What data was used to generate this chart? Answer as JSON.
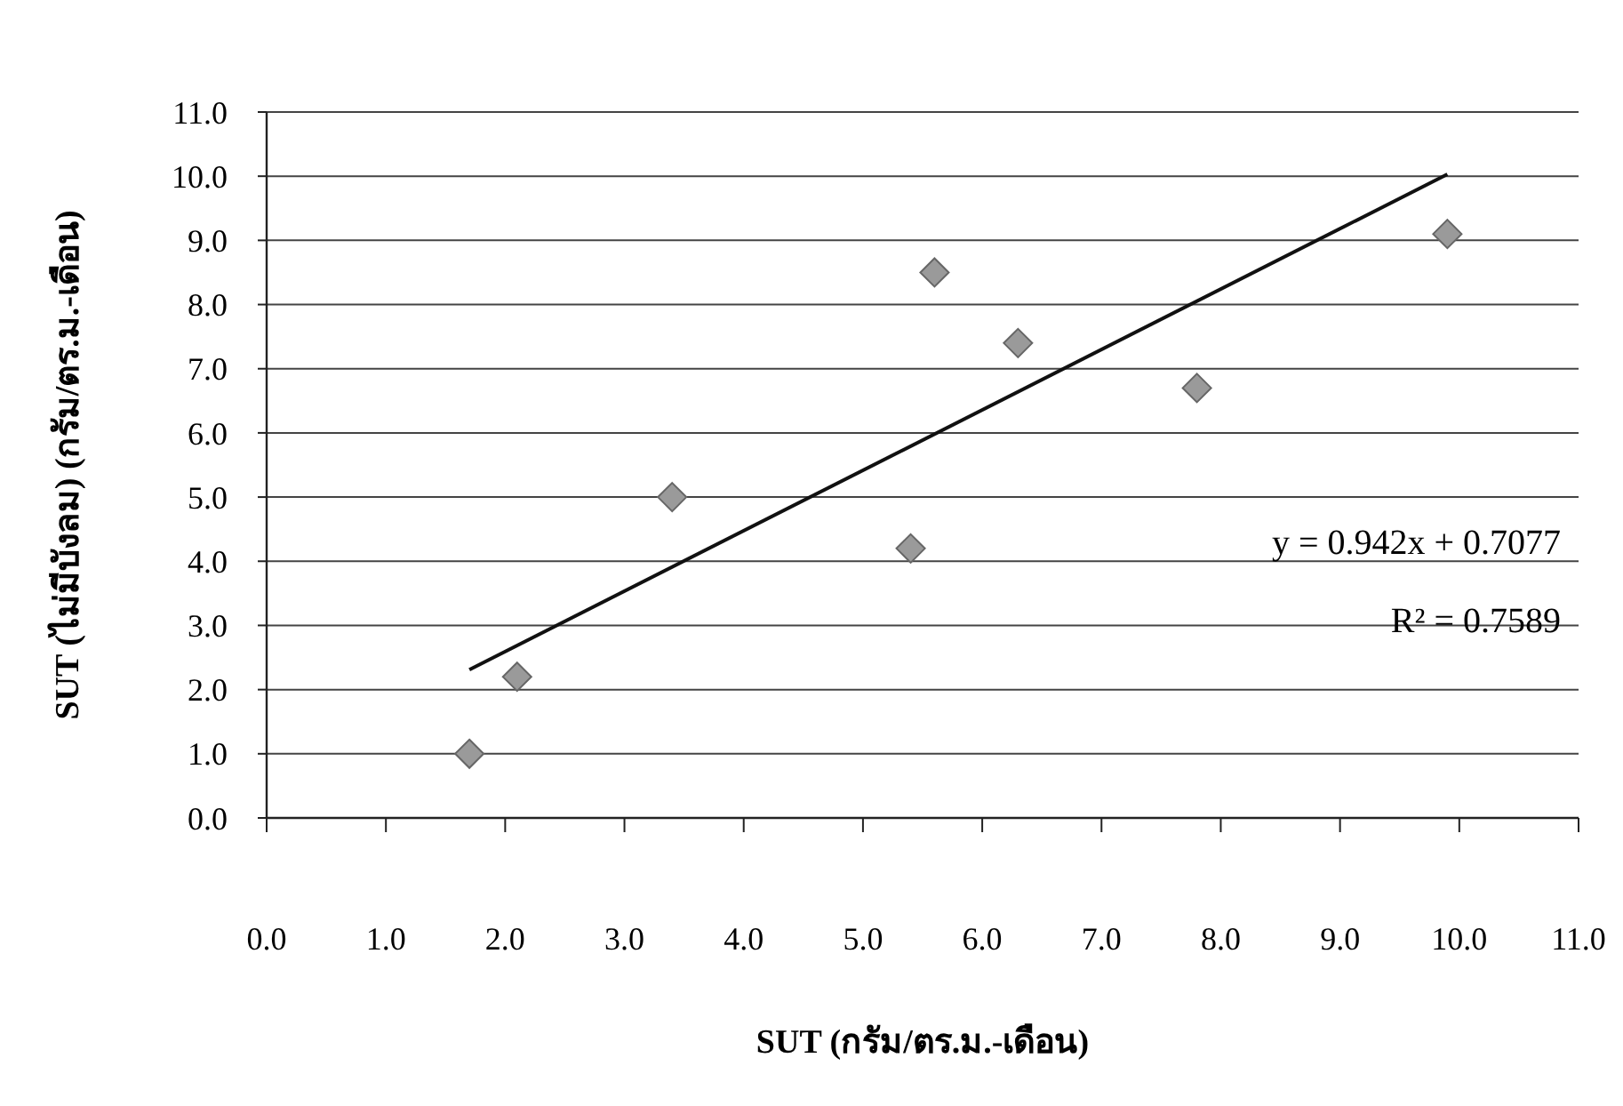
{
  "chart_data": {
    "type": "scatter",
    "xlabel": "SUT (กรัม/ตร.ม.-เดือน)",
    "ylabel": "SUT (ไม่มีบังลม) (กรัม/ตร.ม.-เดือน)",
    "xlim": [
      0,
      11
    ],
    "xticks": [
      {
        "value": 0,
        "label": "0.0"
      },
      {
        "value": 1,
        "label": "1.0"
      },
      {
        "value": 2,
        "label": "2.0"
      },
      {
        "value": 3,
        "label": "3.0"
      },
      {
        "value": 4,
        "label": "4.0"
      },
      {
        "value": 5,
        "label": "5.0"
      },
      {
        "value": 6,
        "label": "6.0"
      },
      {
        "value": 7,
        "label": "7.0"
      },
      {
        "value": 8,
        "label": "8.0"
      },
      {
        "value": 9,
        "label": "9.0"
      },
      {
        "value": 10,
        "label": "10.0"
      },
      {
        "value": 11,
        "label": "11.0"
      }
    ],
    "ylim": [
      0,
      11
    ],
    "yticks": [
      {
        "value": 0,
        "label": "0.0"
      },
      {
        "value": 1,
        "label": "1.0"
      },
      {
        "value": 2,
        "label": "2.0"
      },
      {
        "value": 3,
        "label": "3.0"
      },
      {
        "value": 4,
        "label": "4.0"
      },
      {
        "value": 5,
        "label": "5.0"
      },
      {
        "value": 6,
        "label": "6.0"
      },
      {
        "value": 7,
        "label": "7.0"
      },
      {
        "value": 8,
        "label": "8.0"
      },
      {
        "value": 9,
        "label": "9.0"
      },
      {
        "value": 10,
        "label": "10.0"
      },
      {
        "value": 11,
        "label": "11.0"
      }
    ],
    "grid": "y",
    "marker": "diamond",
    "annotations": [
      "y = 0.942x + 0.7077",
      "R² = 0.7589"
    ],
    "series": [
      {
        "color": "#9a9a9a",
        "x": [
          1.7,
          2.1,
          3.4,
          5.4,
          5.6,
          6.3,
          7.8,
          9.9
        ],
        "values": [
          1.0,
          2.2,
          5.0,
          4.2,
          8.5,
          7.4,
          6.7,
          9.1
        ]
      },
      {
        "type": "line",
        "color": "#111111",
        "marker": "none",
        "x": [
          1.7,
          9.9
        ],
        "values": [
          2.31,
          10.03
        ]
      }
    ]
  }
}
